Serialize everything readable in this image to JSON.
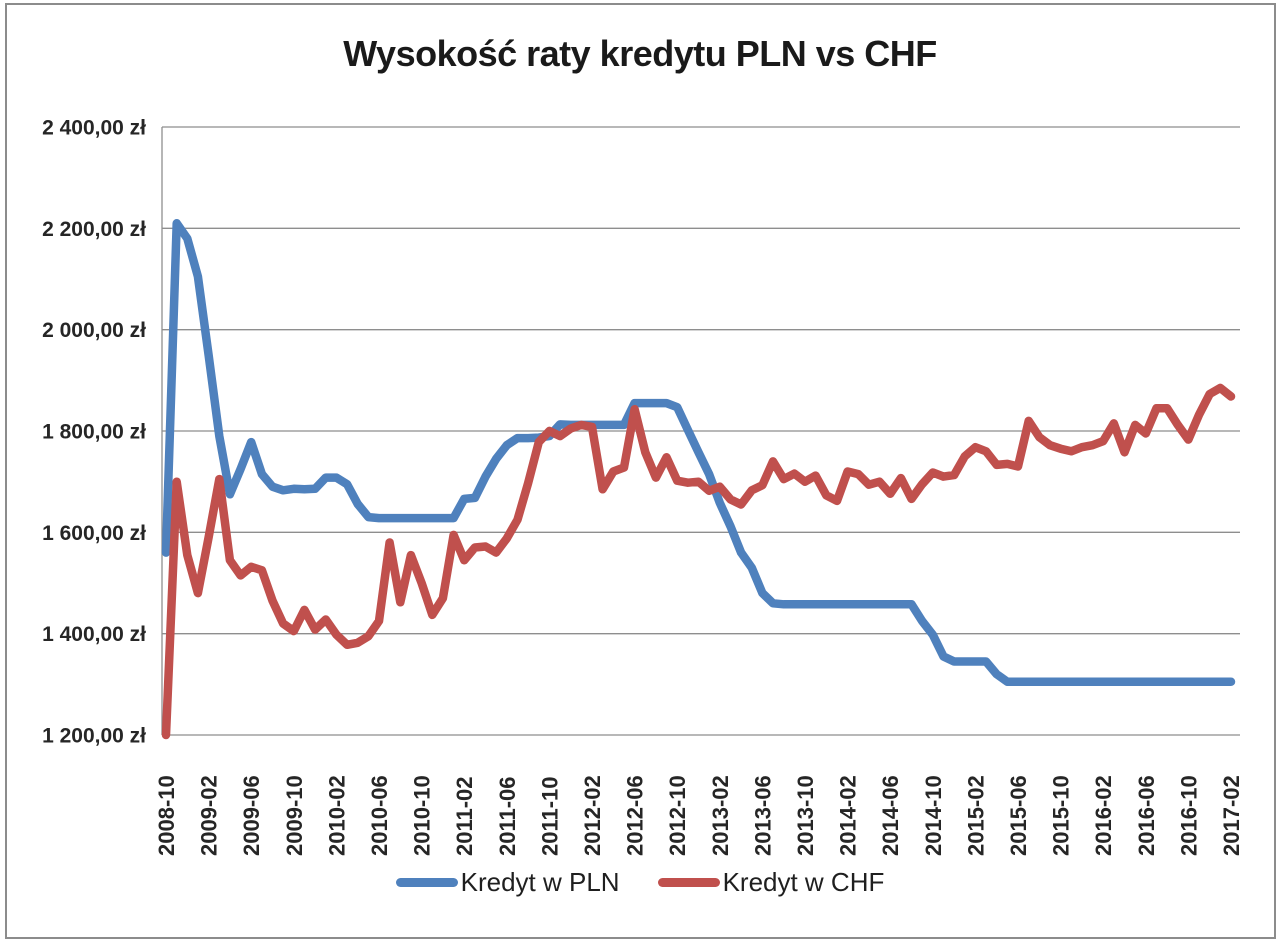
{
  "chart_data": {
    "type": "line",
    "title": "Wysokość raty kredytu PLN vs CHF",
    "grid": "horizontal",
    "legend_position": "bottom",
    "y_axis": {
      "min": 1200,
      "max": 2400,
      "step": 200,
      "unit": "zł",
      "tick_labels": [
        "2 400,00 zł",
        "2 200,00 zł",
        "2 000,00 zł",
        "1 800,00 zł",
        "1 600,00 zł",
        "1 400,00 zł",
        "1 200,00 zł"
      ]
    },
    "x_axis": {
      "start": "2008-10",
      "end": "2017-02",
      "interval": "monthly",
      "tick_every": 4,
      "tick_labels": [
        "2008-10",
        "2009-02",
        "2009-06",
        "2009-10",
        "2010-02",
        "2010-06",
        "2010-10",
        "2011-02",
        "2011-06",
        "2011-10",
        "2012-02",
        "2012-06",
        "2012-10",
        "2013-02",
        "2013-06",
        "2013-10",
        "2014-02",
        "2014-06",
        "2014-10",
        "2015-02",
        "2015-06",
        "2015-10",
        "2016-02",
        "2016-06",
        "2016-10",
        "2017-02"
      ]
    },
    "series": [
      {
        "name": "Kredyt w PLN",
        "color": "#4F81BD",
        "values": [
          1560,
          2210,
          2180,
          2105,
          1950,
          1790,
          1675,
          1725,
          1778,
          1715,
          1690,
          1683,
          1686,
          1685,
          1686,
          1708,
          1708,
          1695,
          1656,
          1630,
          1628,
          1628,
          1628,
          1628,
          1628,
          1628,
          1628,
          1628,
          1666,
          1668,
          1710,
          1745,
          1772,
          1786,
          1786,
          1787,
          1790,
          1813,
          1812,
          1812,
          1812,
          1812,
          1812,
          1812,
          1855,
          1855,
          1855,
          1855,
          1847,
          1802,
          1758,
          1715,
          1658,
          1612,
          1560,
          1530,
          1480,
          1460,
          1458,
          1458,
          1458,
          1458,
          1458,
          1458,
          1458,
          1458,
          1458,
          1458,
          1458,
          1458,
          1458,
          1425,
          1398,
          1355,
          1345,
          1345,
          1345,
          1345,
          1320,
          1305,
          1305,
          1305,
          1305,
          1305,
          1305,
          1305,
          1305,
          1305,
          1305,
          1305,
          1305,
          1305,
          1305,
          1305,
          1305,
          1305,
          1305,
          1305,
          1305,
          1305,
          1305
        ]
      },
      {
        "name": "Kredyt w CHF",
        "color": "#C0504D",
        "values": [
          1200,
          1700,
          1555,
          1480,
          1590,
          1705,
          1545,
          1515,
          1532,
          1525,
          1465,
          1420,
          1405,
          1447,
          1408,
          1428,
          1398,
          1378,
          1382,
          1395,
          1425,
          1580,
          1462,
          1555,
          1500,
          1437,
          1470,
          1595,
          1545,
          1570,
          1572,
          1560,
          1588,
          1625,
          1697,
          1778,
          1800,
          1790,
          1805,
          1812,
          1808,
          1685,
          1720,
          1728,
          1843,
          1758,
          1708,
          1748,
          1702,
          1698,
          1700,
          1682,
          1690,
          1665,
          1655,
          1683,
          1693,
          1740,
          1705,
          1716,
          1700,
          1712,
          1673,
          1662,
          1720,
          1715,
          1694,
          1700,
          1676,
          1707,
          1666,
          1695,
          1718,
          1710,
          1713,
          1750,
          1768,
          1760,
          1733,
          1735,
          1730,
          1820,
          1788,
          1772,
          1765,
          1760,
          1768,
          1772,
          1780,
          1815,
          1758,
          1812,
          1795,
          1845,
          1845,
          1812,
          1783,
          1832,
          1873,
          1885,
          1868
        ]
      }
    ]
  }
}
